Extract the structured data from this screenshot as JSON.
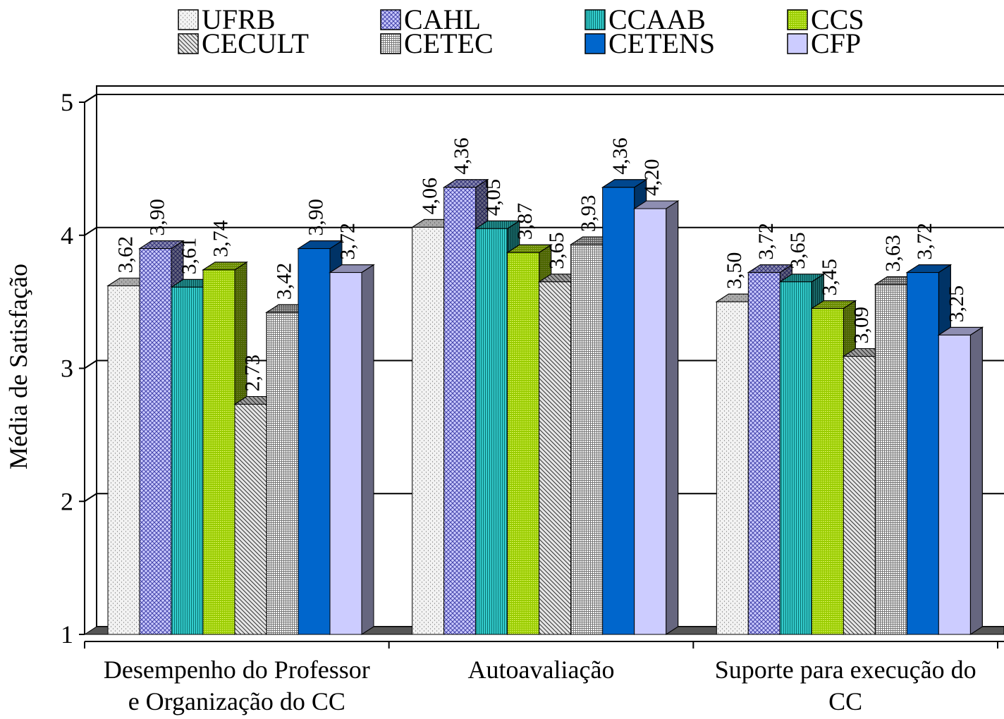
{
  "chart_data": {
    "type": "bar3d",
    "ylabel": "Média de Satisfação",
    "categories": [
      [
        "Desempenho do Professor",
        "e Organização do CC"
      ],
      [
        "Autoavaliação"
      ],
      [
        "Suporte para execução do",
        "CC"
      ]
    ],
    "ylim": [
      1,
      5
    ],
    "yticks": [
      1,
      2,
      3,
      4,
      5
    ],
    "grid": true,
    "legend": "top",
    "series": [
      {
        "name": "UFRB",
        "color": "#f2f2f2",
        "values": [
          3.62,
          4.06,
          3.5
        ],
        "value_labels": [
          "3,62",
          "4,06",
          "3,50"
        ]
      },
      {
        "name": "CAHL",
        "color": "#ccccff",
        "values": [
          3.9,
          4.36,
          3.72
        ],
        "value_labels": [
          "3,90",
          "4,36",
          "3,72"
        ]
      },
      {
        "name": "CCAAB",
        "color": "#33cccc",
        "values": [
          3.61,
          4.05,
          3.65
        ],
        "value_labels": [
          "3,61",
          "4,05",
          "3,65"
        ]
      },
      {
        "name": "CCS",
        "color": "#99cc00",
        "values": [
          3.74,
          3.87,
          3.45
        ],
        "value_labels": [
          "3,74",
          "3,87",
          "3,45"
        ]
      },
      {
        "name": "CECULT",
        "color": "#e6e6e6",
        "values": [
          2.73,
          3.65,
          3.09
        ],
        "value_labels": [
          "2,73",
          "3,65",
          "3,09"
        ]
      },
      {
        "name": "CETEC",
        "color": "#ffffff",
        "values": [
          3.42,
          3.93,
          3.63
        ],
        "value_labels": [
          "3,42",
          "3,93",
          "3,63"
        ]
      },
      {
        "name": "CETENS",
        "color": "#0066cc",
        "values": [
          3.9,
          4.36,
          3.72
        ],
        "value_labels": [
          "3,90",
          "4,36",
          "3,72"
        ]
      },
      {
        "name": "CFP",
        "color": "#ccccff",
        "values": [
          3.72,
          4.2,
          3.25
        ],
        "value_labels": [
          "3,72",
          "4,20",
          "3,25"
        ]
      }
    ]
  }
}
